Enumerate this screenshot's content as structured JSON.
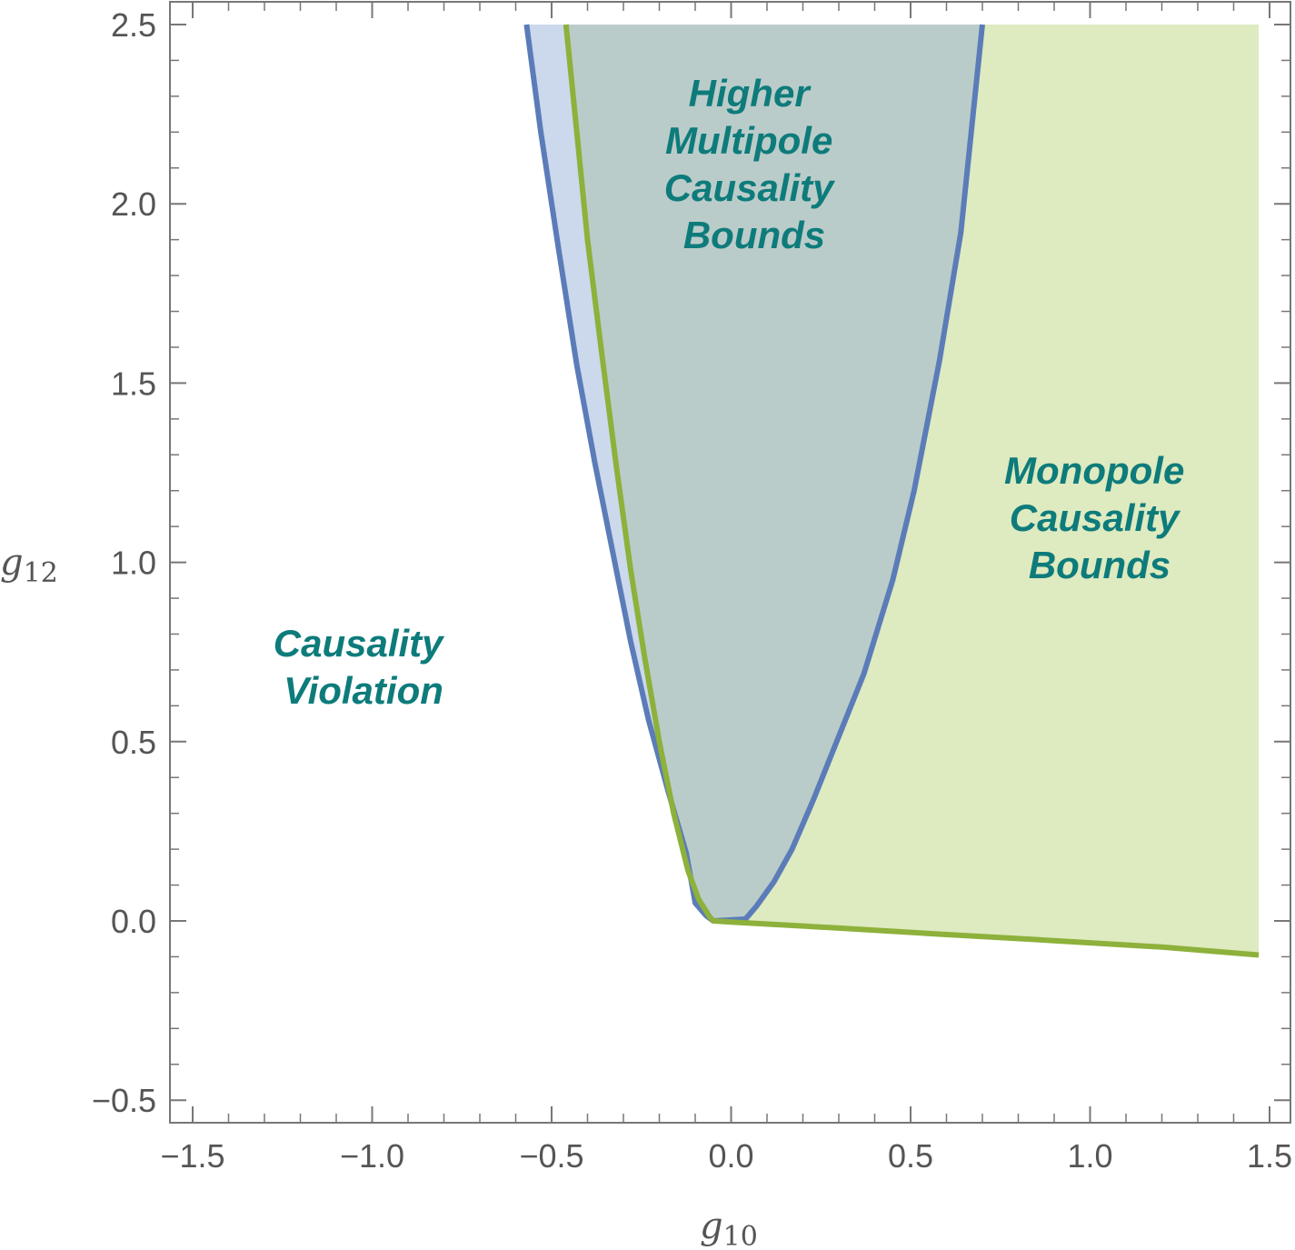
{
  "chart_data": {
    "type": "area",
    "xlabel": {
      "base": "g",
      "sub": "10"
    },
    "ylabel": {
      "base": "g",
      "sub": "12"
    },
    "xlim": [
      -1.55,
      1.55
    ],
    "ylim": [
      -0.56,
      2.55
    ],
    "xticks": [
      -1.5,
      -1.0,
      -0.5,
      0.0,
      0.5,
      1.0,
      1.5
    ],
    "xtick_labels": [
      "−1.5",
      "−1.0",
      "−0.5",
      "0.0",
      "0.5",
      "1.0",
      "1.5"
    ],
    "yticks": [
      -0.5,
      0.0,
      0.5,
      1.0,
      1.5,
      2.0,
      2.5
    ],
    "ytick_labels": [
      "−0.5",
      "0.0",
      "0.5",
      "1.0",
      "1.5",
      "2.0",
      "2.5"
    ],
    "grid": false,
    "colors": {
      "higher_fill": "#8fa8d4",
      "higher_edge": "#5b7cb8",
      "mono_fill": "#c8dc96",
      "mono_edge": "#8db13a",
      "label": "#0e7b7b",
      "axis": "#777777"
    },
    "series": [
      {
        "name": "Higher Multipole Causality Bounds",
        "x": [
          -0.57,
          -0.53,
          -0.48,
          -0.43,
          -0.38,
          -0.32,
          -0.28,
          -0.23,
          -0.175,
          -0.125,
          -0.1,
          -0.07,
          -0.05,
          0.04,
          0.07,
          0.12,
          0.17,
          0.23,
          0.31,
          0.37,
          0.45,
          0.51,
          0.58,
          0.64,
          0.7
        ],
        "y": [
          2.5,
          2.2,
          1.87,
          1.55,
          1.28,
          0.98,
          0.78,
          0.56,
          0.36,
          0.19,
          0.05,
          0.015,
          0.0,
          0.005,
          0.04,
          0.11,
          0.2,
          0.34,
          0.54,
          0.69,
          0.95,
          1.2,
          1.56,
          1.92,
          2.5
        ]
      },
      {
        "name": "Monopole Causality Bounds",
        "x": [
          -0.46,
          -0.43,
          -0.4,
          -0.36,
          -0.32,
          -0.28,
          -0.24,
          -0.2,
          -0.16,
          -0.12,
          -0.09,
          -0.06,
          -0.05,
          0.0,
          0.3,
          0.6,
          0.9,
          1.2,
          1.47
        ],
        "y": [
          2.5,
          2.2,
          1.9,
          1.58,
          1.27,
          0.98,
          0.73,
          0.5,
          0.3,
          0.14,
          0.06,
          0.012,
          0.0,
          -0.003,
          -0.02,
          -0.038,
          -0.055,
          -0.073,
          -0.095
        ]
      }
    ],
    "annotations": [
      {
        "lines": [
          "Higher",
          "Multipole",
          "Causality",
          "Bounds"
        ]
      },
      {
        "lines": [
          "Monopole",
          "Causality",
          "Bounds"
        ]
      },
      {
        "lines": [
          "Causality",
          "Violation"
        ]
      }
    ]
  }
}
